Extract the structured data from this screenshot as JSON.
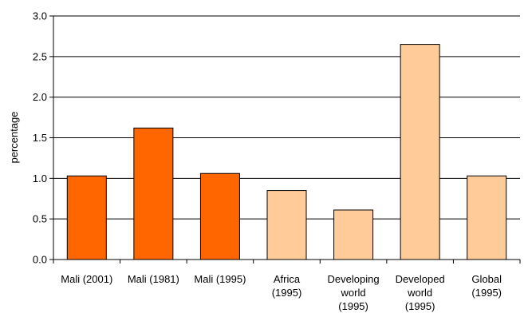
{
  "chart_data": {
    "type": "bar",
    "y_label": "percentage",
    "categories": [
      [
        "Mali (2001)"
      ],
      [
        "Mali (1981)"
      ],
      [
        "Mali (1995)"
      ],
      [
        "Africa",
        "(1995)"
      ],
      [
        "Developing",
        "world",
        "(1995)"
      ],
      [
        "Developed",
        "world",
        "(1995)"
      ],
      [
        "Global",
        "(1995)"
      ]
    ],
    "values": [
      1.03,
      1.62,
      1.06,
      0.85,
      0.61,
      2.65,
      1.03
    ],
    "colors": [
      "#ff6600",
      "#ff6600",
      "#ff6600",
      "#ffcc99",
      "#ffcc99",
      "#ffcc99",
      "#ffcc99"
    ],
    "ylim": [
      0,
      3
    ],
    "yticks": [
      {
        "value": 0,
        "label": "0.0"
      },
      0.5,
      {
        "value": 1,
        "label": "1.0"
      },
      1.5,
      {
        "value": 2,
        "label": "2.0"
      },
      2.5,
      {
        "value": 3,
        "label": "3.0"
      }
    ],
    "grid": true
  }
}
